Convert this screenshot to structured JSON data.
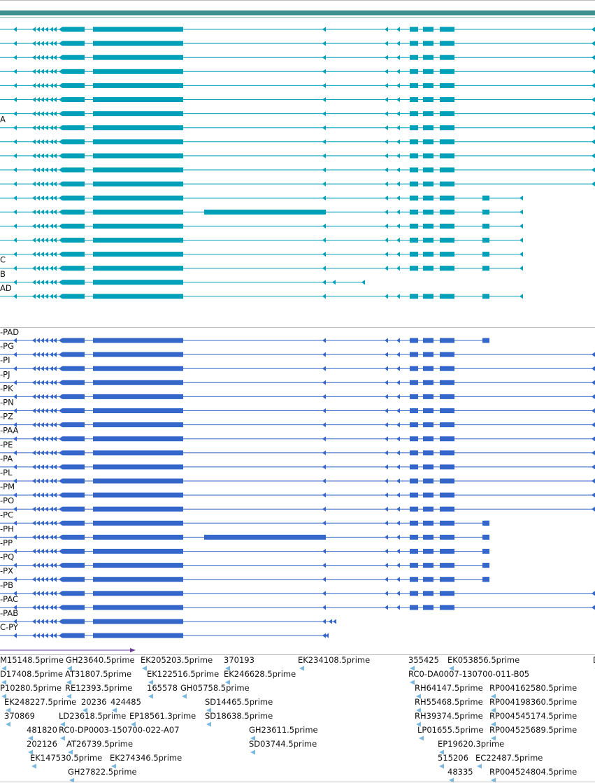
{
  "colors": {
    "border": "#bfbfbf",
    "top_bar": "#3b8f8c",
    "mrna": "#00a0b8",
    "protein": "#3566c9",
    "est": "#7bb8df",
    "scale_arrow": "#6a3a9a"
  },
  "mrna_tracks": [
    {
      "label": "",
      "variant": "long"
    },
    {
      "label": "",
      "variant": "long"
    },
    {
      "label": "",
      "variant": "long"
    },
    {
      "label": "",
      "variant": "long"
    },
    {
      "label": "",
      "variant": "long"
    },
    {
      "label": "",
      "variant": "long"
    },
    {
      "label": "",
      "variant": "long"
    },
    {
      "label": "A",
      "variant": "long"
    },
    {
      "label": "",
      "variant": "long"
    },
    {
      "label": "",
      "variant": "long"
    },
    {
      "label": "",
      "variant": "long"
    },
    {
      "label": "",
      "variant": "long"
    },
    {
      "label": "",
      "variant": "short"
    },
    {
      "label": "",
      "variant": "alt"
    },
    {
      "label": "",
      "variant": "short"
    },
    {
      "label": "",
      "variant": "short"
    },
    {
      "label": "",
      "variant": "short"
    },
    {
      "label": "C",
      "variant": "short"
    },
    {
      "label": "B",
      "variant": "trunc"
    },
    {
      "label": "AD",
      "variant": "short"
    }
  ],
  "protein_tracks": [
    {
      "label": "-PAD",
      "variant": "cds_short"
    },
    {
      "label": "-PG",
      "variant": "cds_long"
    },
    {
      "label": "-PI",
      "variant": "cds_long"
    },
    {
      "label": "-PJ",
      "variant": "cds_long"
    },
    {
      "label": "-PK",
      "variant": "cds_long"
    },
    {
      "label": "-PN",
      "variant": "cds_long"
    },
    {
      "label": "-PZ",
      "variant": "cds_long"
    },
    {
      "label": "-PAA",
      "variant": "cds_long"
    },
    {
      "label": "-PE",
      "variant": "cds_long"
    },
    {
      "label": "-PA",
      "variant": "cds_long"
    },
    {
      "label": "-PL",
      "variant": "cds_long"
    },
    {
      "label": "-PM",
      "variant": "cds_long"
    },
    {
      "label": "-PO",
      "variant": "cds_long"
    },
    {
      "label": "-PC",
      "variant": "cds_short"
    },
    {
      "label": "-PH",
      "variant": "cds_alt"
    },
    {
      "label": "-PP",
      "variant": "cds_short"
    },
    {
      "label": "-PQ",
      "variant": "cds_short"
    },
    {
      "label": "-PX",
      "variant": "cds_short"
    },
    {
      "label": "-PB",
      "variant": "cds_long"
    },
    {
      "label": "-PAC",
      "variant": "cds_long"
    },
    {
      "label": "-PAB",
      "variant": "cds_trunc"
    },
    {
      "label": "C-PY",
      "variant": "cds_mid"
    }
  ],
  "est_features": [
    {
      "label": "M15148.5prime",
      "row": 0
    },
    {
      "label": "GH23640.5prime",
      "row": 0
    },
    {
      "label": "EK205203.5prime",
      "row": 0
    },
    {
      "label": "370193",
      "row": 0
    },
    {
      "label": "EK234108.5prime",
      "row": 0
    },
    {
      "label": "355425",
      "row": 0
    },
    {
      "label": "EK053856.5prime",
      "row": 0
    },
    {
      "label": "D",
      "row": 0
    },
    {
      "label": "D17408.5prime",
      "row": 1
    },
    {
      "label": "AT31807.5prime",
      "row": 1
    },
    {
      "label": "EK122516.5prime",
      "row": 1
    },
    {
      "label": "EK246628.5prime",
      "row": 1
    },
    {
      "label": "RC0-DA0007-130700-011-B05",
      "row": 1
    },
    {
      "label": "P10280.5prime",
      "row": 2
    },
    {
      "label": "RE12393.5prime",
      "row": 2
    },
    {
      "label": "165578",
      "row": 2
    },
    {
      "label": "GH05758.5prime",
      "row": 2
    },
    {
      "label": "RH64147.5prime",
      "row": 2
    },
    {
      "label": "RP004162580.5prime",
      "row": 2
    },
    {
      "label": "EK248227.5prime",
      "row": 3
    },
    {
      "label": "20236",
      "row": 3
    },
    {
      "label": "424485",
      "row": 3
    },
    {
      "label": "SD14465.5prime",
      "row": 3
    },
    {
      "label": "RH55468.5prime",
      "row": 3
    },
    {
      "label": "RP004198360.5prime",
      "row": 3
    },
    {
      "label": "370869",
      "row": 4
    },
    {
      "label": "LD23618.5prime",
      "row": 4
    },
    {
      "label": "EP18561.3prime",
      "row": 4
    },
    {
      "label": "SD18638.5prime",
      "row": 4
    },
    {
      "label": "RH39374.5prime",
      "row": 4
    },
    {
      "label": "RP004545174.5prime",
      "row": 4
    },
    {
      "label": "481820",
      "row": 5
    },
    {
      "label": "RC0-DP0003-150700-022-A07",
      "row": 5
    },
    {
      "label": "GH23611.5prime",
      "row": 5
    },
    {
      "label": "LP01655.5prime",
      "row": 5
    },
    {
      "label": "RP004525689.5prime",
      "row": 5
    },
    {
      "label": "202126",
      "row": 6
    },
    {
      "label": "AT26739.5prime",
      "row": 6
    },
    {
      "label": "SD03744.5prime",
      "row": 6
    },
    {
      "label": "EP19620.3prime",
      "row": 6
    },
    {
      "label": "EK147530.5prime",
      "row": 7
    },
    {
      "label": "EK274346.5prime",
      "row": 7
    },
    {
      "label": "515206",
      "row": 7
    },
    {
      "label": "EC22487.5prime",
      "row": 7
    },
    {
      "label": "GH27822.5prime",
      "row": 8
    },
    {
      "label": "48335",
      "row": 8
    },
    {
      "label": "RP004524804.5prime",
      "row": 8
    }
  ]
}
